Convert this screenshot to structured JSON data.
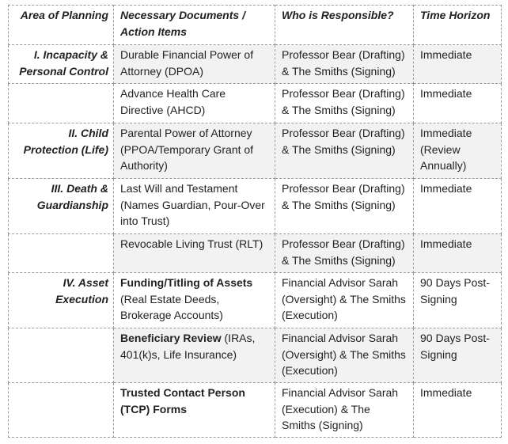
{
  "table": {
    "header": [
      "Area of Planning",
      "Necessary Documents / Action Items",
      "Who is Responsible?",
      "Time Horizon"
    ],
    "rows": [
      {
        "area": "I. Incapacity & Personal Control",
        "document": "Durable Financial Power of Attorney (DPOA)",
        "responsible": "Professor Bear (Drafting) & The Smiths (Signing)",
        "time": "Immediate"
      },
      {
        "document": "Advance Health Care Directive (AHCD)",
        "responsible": "Professor Bear (Drafting) & The Smiths (Signing)",
        "time": "Immediate"
      },
      {
        "area": "II. Child Protection (Life)",
        "document": "Parental Power of Attorney (PPOA/Temporary Grant of Authority)",
        "responsible": "Professor Bear (Drafting) & The Smiths (Signing)",
        "time": "Immediate (Review Annually)"
      },
      {
        "area": "III. Death & Guardianship",
        "document": "Last Will and Testament (Names Guardian, Pour-Over into Trust)",
        "responsible": "Professor Bear (Drafting) & The Smiths (Signing)",
        "time": "Immediate"
      },
      {
        "document": "Revocable Living Trust (RLT)",
        "responsible": "Professor Bear (Drafting) & The Smiths (Signing)",
        "time": "Immediate"
      },
      {
        "area": "IV. Asset Execution",
        "document_bold": "Funding/Titling of Assets",
        "document": "(Real Estate Deeds, Brokerage Accounts)",
        "responsible": "Financial Advisor Sarah (Oversight) & The Smiths (Execution)",
        "time": "90 Days Post-Signing"
      },
      {
        "document_bold": "Beneficiary Review",
        "document": "(IRAs, 401(k)s, Life Insurance)",
        "responsible": "Financial Advisor Sarah (Oversight) & The Smiths (Execution)",
        "time": "90 Days Post-Signing"
      },
      {
        "document_bold": "Trusted Contact Person (TCP) Forms",
        "responsible": "Financial Advisor Sarah (Execution) & The Smiths (Signing)",
        "time": "Immediate"
      }
    ]
  }
}
